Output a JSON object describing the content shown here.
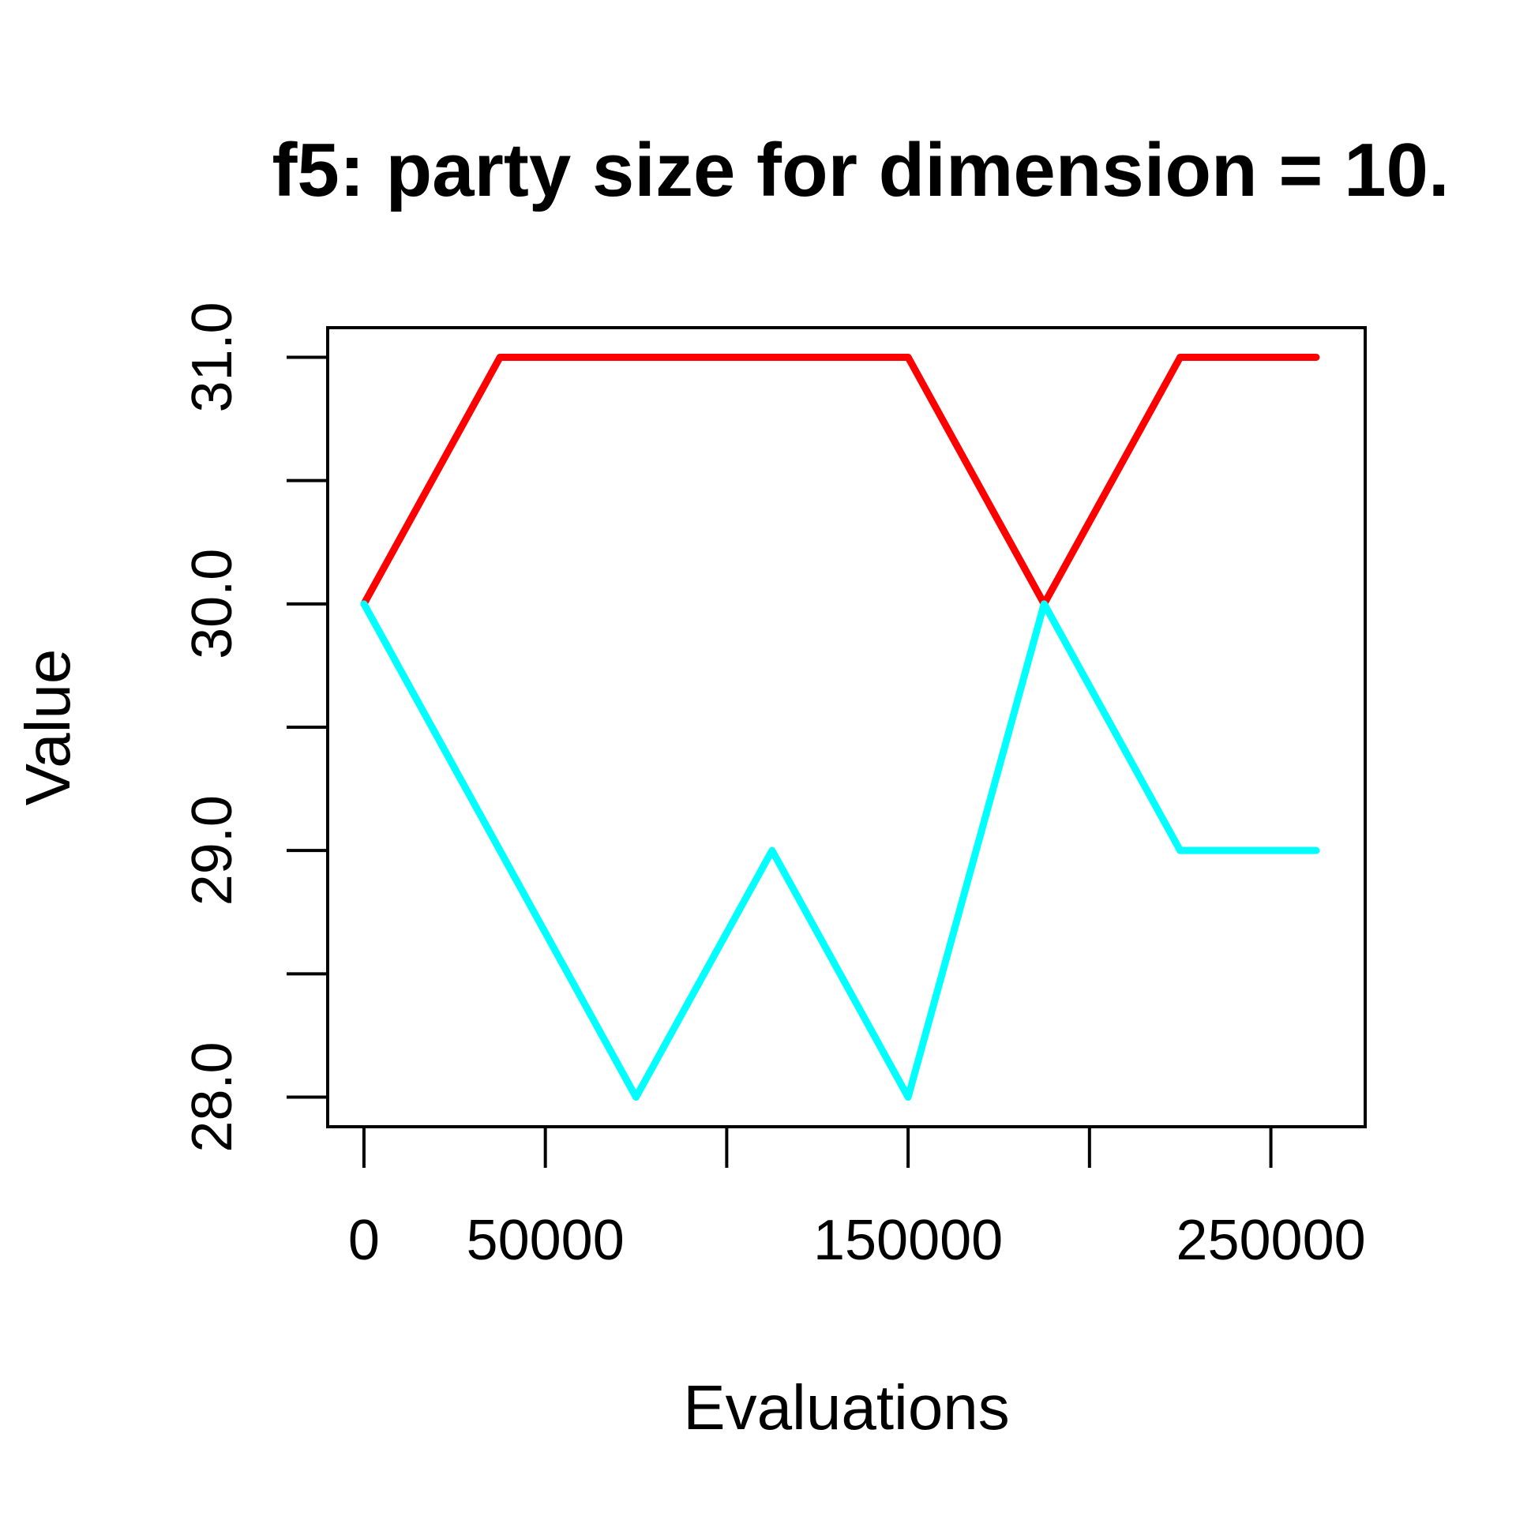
{
  "chart_data": {
    "type": "line",
    "title": "f5: party size for dimension = 10.",
    "xlabel": "Evaluations",
    "ylabel": "Value",
    "xlim": [
      -10000,
      276000
    ],
    "ylim": [
      27.88,
      31.12
    ],
    "x": [
      0,
      37500,
      75000,
      112500,
      150000,
      187500,
      225000,
      262500
    ],
    "x_ticks": [
      0,
      50000,
      100000,
      150000,
      200000,
      250000
    ],
    "x_tick_labels": [
      "0",
      "50000",
      "",
      "150000",
      "",
      "250000"
    ],
    "y_ticks": [
      28.0,
      28.5,
      29.0,
      29.5,
      30.0,
      30.5,
      31.0
    ],
    "y_tick_labels": [
      "28.0",
      "",
      "29.0",
      "",
      "30.0",
      "",
      "31.0"
    ],
    "series": [
      {
        "color": "#ff0000",
        "values": [
          30,
          31,
          31,
          31,
          31,
          30,
          31,
          31
        ]
      },
      {
        "color": "#00ffff",
        "values": [
          30,
          29,
          28,
          29,
          28,
          30,
          29,
          29
        ]
      }
    ],
    "grid": false
  }
}
